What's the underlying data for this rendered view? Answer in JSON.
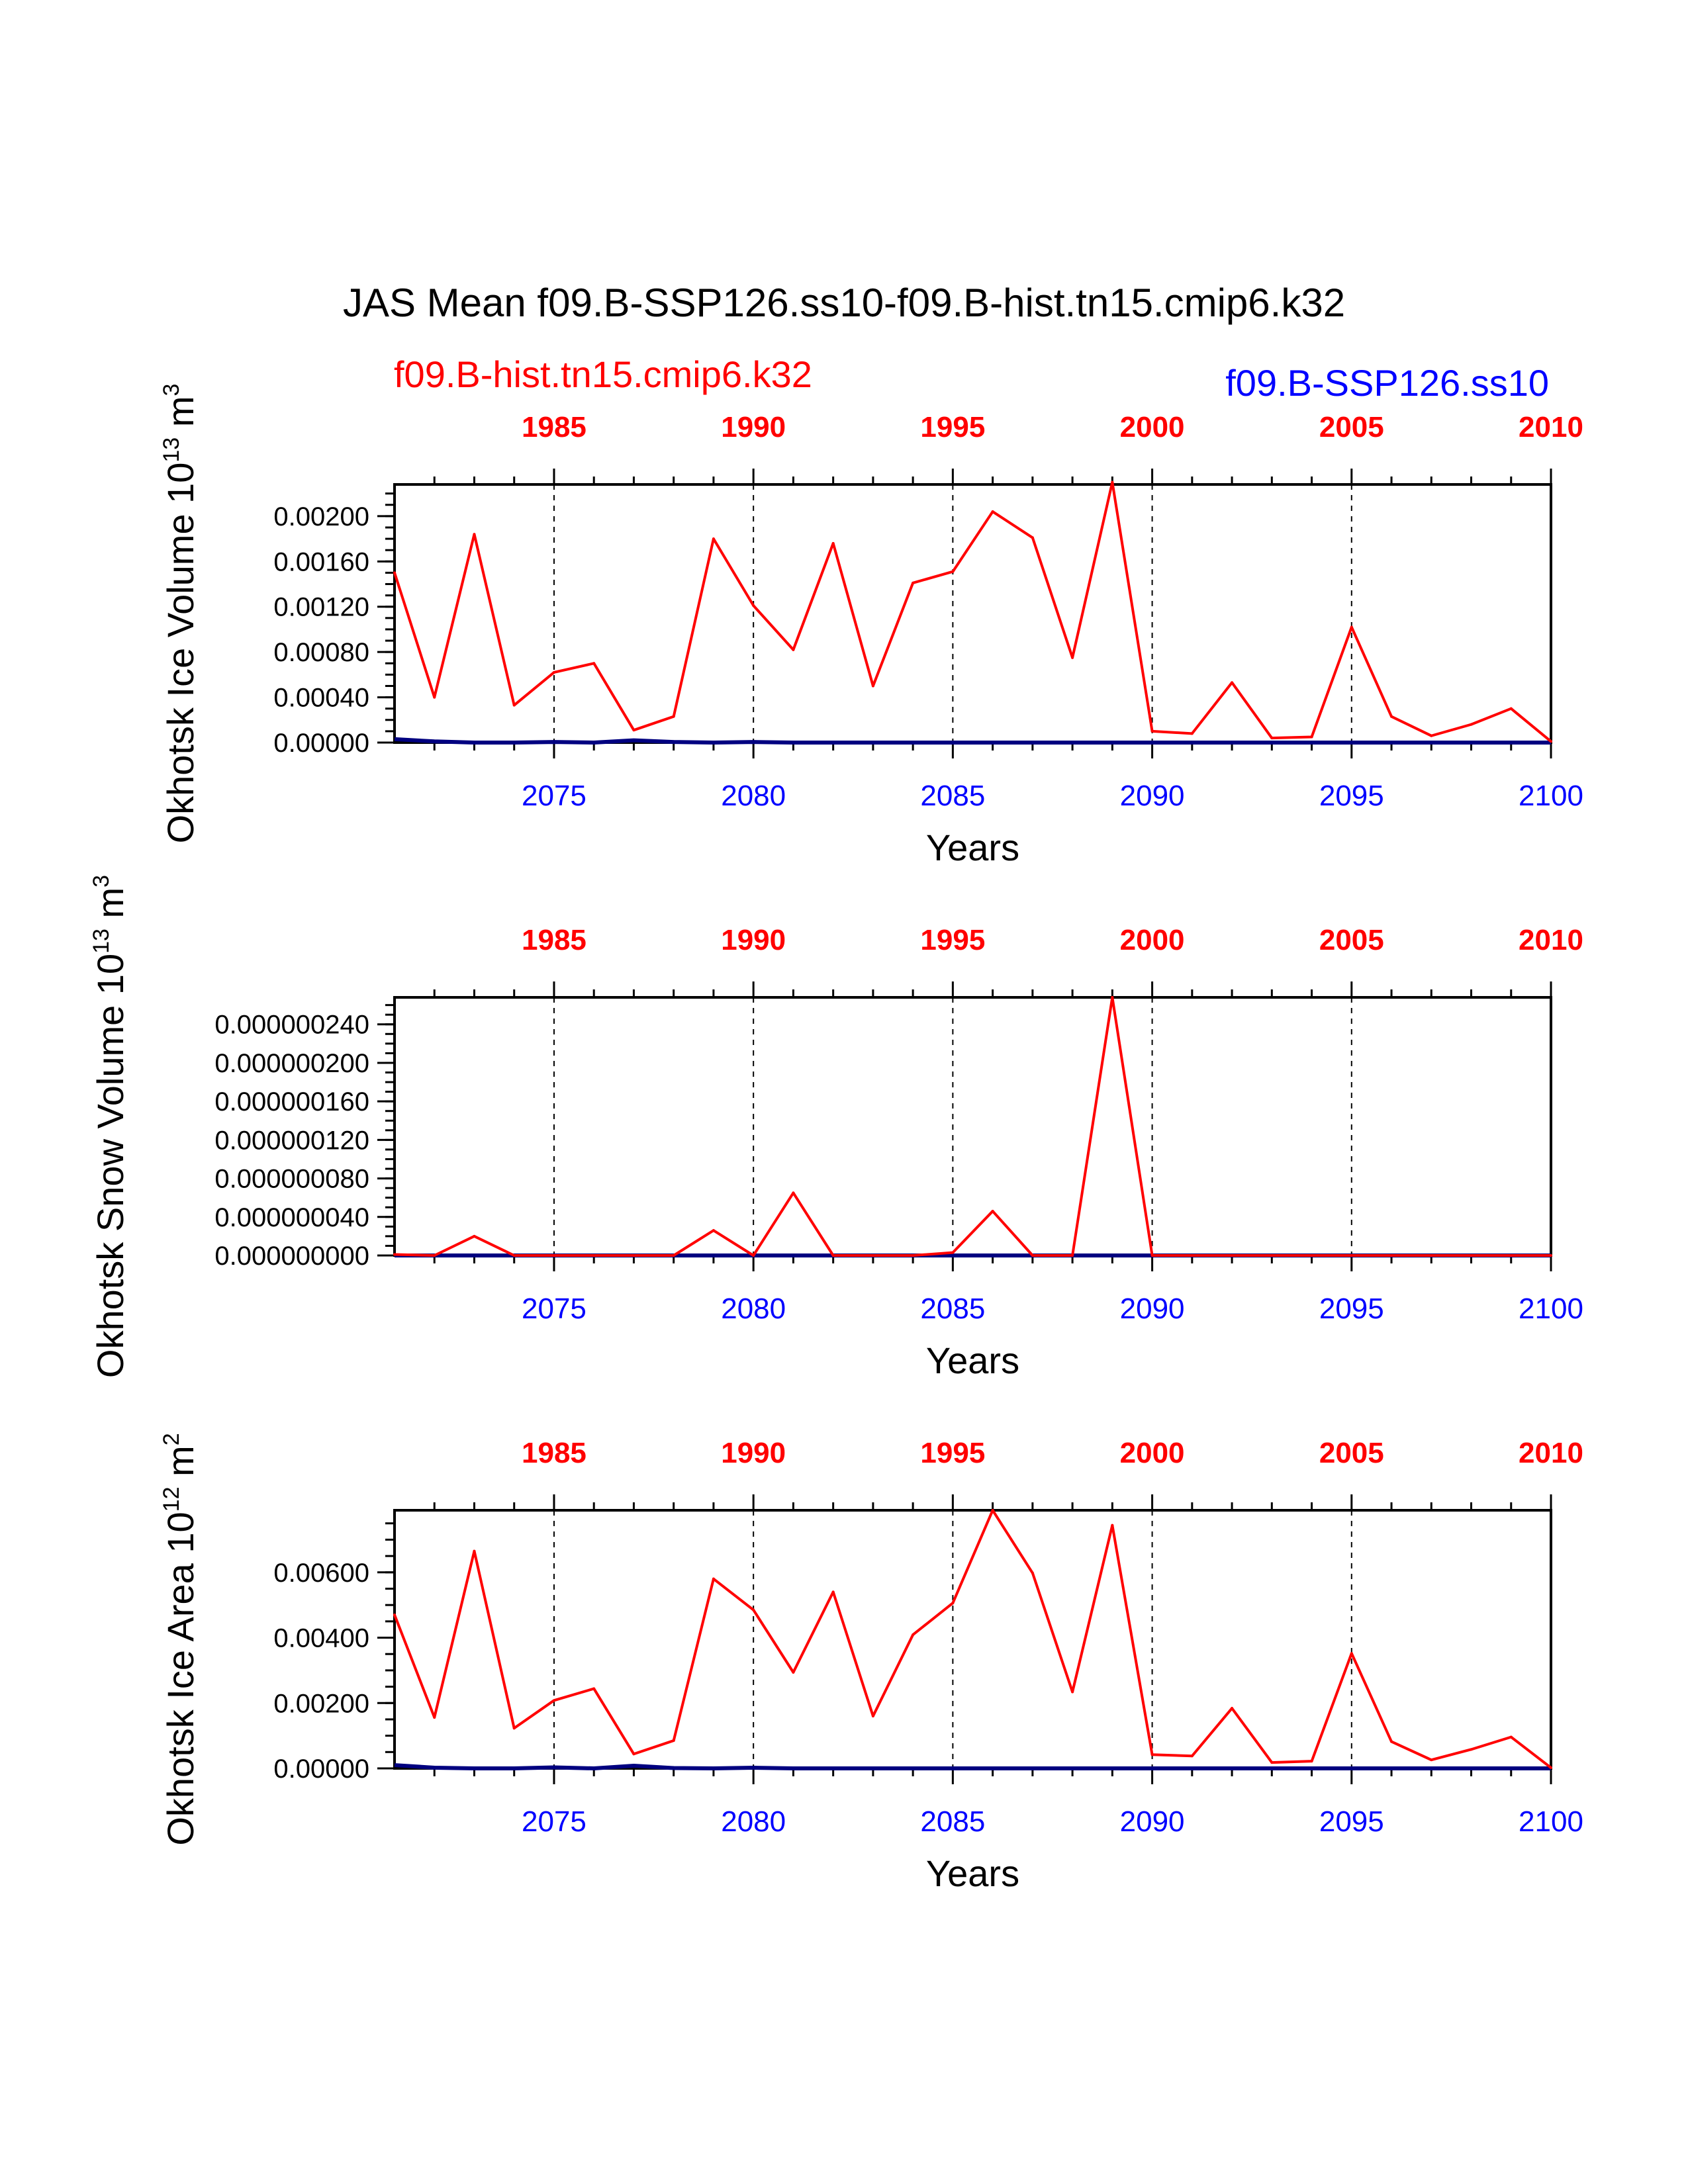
{
  "title": "JAS Mean f09.B-SSP126.ss10-f09.B-hist.tn15.cmip6.k32",
  "legend": {
    "hist": "f09.B-hist.tn15.cmip6.k32",
    "ssp": "f09.B-SSP126.ss10"
  },
  "colors": {
    "hist": "#ff0000",
    "ssp": "#0000ff",
    "ssp_line": "#000080",
    "axis": "#000000"
  },
  "chart_data": [
    {
      "type": "line",
      "name": "ice-volume",
      "ylabel_main": "Okhotsk Ice Volume 10",
      "ylabel_exp": "13",
      "ylabel_unit": " m",
      "ylabel_unit_exp": "3",
      "xlabel": "Years",
      "ylim": [
        0,
        0.00228
      ],
      "ytick_values": [
        0,
        0.0004,
        0.0008,
        0.0012,
        0.0016,
        0.002
      ],
      "ytick_labels": [
        "0.00000",
        "0.00040",
        "0.00080",
        "0.00120",
        "0.00160",
        "0.00200"
      ],
      "yminor_step": 0.0001,
      "x_top": {
        "range": [
          1981,
          2010
        ],
        "ticks": [
          1985,
          1990,
          1995,
          2000,
          2005,
          2010
        ]
      },
      "x_bottom": {
        "range": [
          2071,
          2100
        ],
        "ticks": [
          2075,
          2080,
          2085,
          2090,
          2095,
          2100
        ]
      },
      "series": [
        {
          "name": "f09.B-hist.tn15.cmip6.k32",
          "x": [
            1981,
            1982,
            1983,
            1984,
            1985,
            1986,
            1987,
            1988,
            1989,
            1990,
            1991,
            1992,
            1993,
            1994,
            1995,
            1996,
            1997,
            1998,
            1999,
            2000,
            2001,
            2002,
            2003,
            2004,
            2005,
            2006,
            2007,
            2008,
            2009,
            2010
          ],
          "values": [
            0.0015,
            0.0004,
            0.00184,
            0.00033,
            0.00062,
            0.0007,
            0.00011,
            0.00023,
            0.0018,
            0.00121,
            0.00082,
            0.00176,
            0.0005,
            0.00141,
            0.00151,
            0.00204,
            0.00181,
            0.00075,
            0.0023,
            0.0001,
            8e-05,
            0.00053,
            4e-05,
            5e-05,
            0.00102,
            0.00023,
            6e-05,
            0.00016,
            0.0003,
            1e-05
          ]
        },
        {
          "name": "f09.B-SSP126.ss10",
          "x": [
            2071,
            2072,
            2073,
            2074,
            2075,
            2076,
            2077,
            2078,
            2079,
            2080,
            2081,
            2082,
            2083,
            2084,
            2085,
            2086,
            2087,
            2088,
            2089,
            2090,
            2091,
            2092,
            2093,
            2094,
            2095,
            2096,
            2097,
            2098,
            2099,
            2100
          ],
          "values": [
            3e-05,
            1e-05,
            0,
            0,
            5e-06,
            0,
            2e-05,
            5e-06,
            0,
            5e-06,
            0,
            0,
            0,
            0,
            0,
            0,
            0,
            0,
            0,
            0,
            0,
            0,
            0,
            0,
            0,
            0,
            0,
            0,
            0,
            0
          ]
        }
      ]
    },
    {
      "type": "line",
      "name": "snow-volume",
      "ylabel_main": "Okhotsk Snow Volume 10",
      "ylabel_exp": "13",
      "ylabel_unit": " m",
      "ylabel_unit_exp": "3",
      "xlabel": "Years",
      "ylim": [
        0,
        2.68e-07
      ],
      "ytick_values": [
        0,
        4e-08,
        8e-08,
        1.2e-07,
        1.6e-07,
        2e-07,
        2.4e-07
      ],
      "ytick_labels": [
        "0.000000000",
        "0.000000040",
        "0.000000080",
        "0.000000120",
        "0.000000160",
        "0.000000200",
        "0.000000240"
      ],
      "yminor_step": 1e-08,
      "x_top": {
        "range": [
          1981,
          2010
        ],
        "ticks": [
          1985,
          1990,
          1995,
          2000,
          2005,
          2010
        ]
      },
      "x_bottom": {
        "range": [
          2071,
          2100
        ],
        "ticks": [
          2075,
          2080,
          2085,
          2090,
          2095,
          2100
        ]
      },
      "series": [
        {
          "name": "f09.B-hist.tn15.cmip6.k32",
          "x": [
            1981,
            1982,
            1983,
            1984,
            1985,
            1986,
            1987,
            1988,
            1989,
            1990,
            1991,
            1992,
            1993,
            1994,
            1995,
            1996,
            1997,
            1998,
            1999,
            2000,
            2001,
            2002,
            2003,
            2004,
            2005,
            2006,
            2007,
            2008,
            2009,
            2010
          ],
          "values": [
            1e-09,
            0,
            2e-08,
            0,
            0,
            0,
            0,
            0,
            2.6e-08,
            0,
            6.5e-08,
            0,
            0,
            0,
            3e-09,
            4.6e-08,
            0,
            0,
            2.68e-07,
            0,
            0,
            0,
            0,
            0,
            0,
            0,
            0,
            0,
            0,
            0
          ]
        },
        {
          "name": "f09.B-SSP126.ss10",
          "x": [
            2071,
            2072,
            2073,
            2074,
            2075,
            2076,
            2077,
            2078,
            2079,
            2080,
            2081,
            2082,
            2083,
            2084,
            2085,
            2086,
            2087,
            2088,
            2089,
            2090,
            2091,
            2092,
            2093,
            2094,
            2095,
            2096,
            2097,
            2098,
            2099,
            2100
          ],
          "values": [
            0,
            0,
            0,
            0,
            0,
            0,
            0,
            0,
            0,
            0,
            0,
            0,
            0,
            0,
            0,
            0,
            0,
            0,
            0,
            0,
            0,
            0,
            0,
            0,
            0,
            0,
            0,
            0,
            0,
            0
          ]
        }
      ]
    },
    {
      "type": "line",
      "name": "ice-area",
      "ylabel_main": "Okhotsk Ice Area 10",
      "ylabel_exp": "12",
      "ylabel_unit": " m",
      "ylabel_unit_exp": "2",
      "xlabel": "Years",
      "ylim": [
        0,
        0.0079
      ],
      "ytick_values": [
        0,
        0.002,
        0.004,
        0.006
      ],
      "ytick_labels": [
        "0.00000",
        "0.00200",
        "0.00400",
        "0.00600"
      ],
      "yminor_step": 0.0005,
      "x_top": {
        "range": [
          1981,
          2010
        ],
        "ticks": [
          1985,
          1990,
          1995,
          2000,
          2005,
          2010
        ]
      },
      "x_bottom": {
        "range": [
          2071,
          2100
        ],
        "ticks": [
          2075,
          2080,
          2085,
          2090,
          2095,
          2100
        ]
      },
      "series": [
        {
          "name": "f09.B-hist.tn15.cmip6.k32",
          "x": [
            1981,
            1982,
            1983,
            1984,
            1985,
            1986,
            1987,
            1988,
            1989,
            1990,
            1991,
            1992,
            1993,
            1994,
            1995,
            1996,
            1997,
            1998,
            1999,
            2000,
            2001,
            2002,
            2003,
            2004,
            2005,
            2006,
            2007,
            2008,
            2009,
            2010
          ],
          "values": [
            0.0047,
            0.00156,
            0.00665,
            0.00123,
            0.00208,
            0.00244,
            0.00044,
            0.00085,
            0.0058,
            0.00485,
            0.00294,
            0.0054,
            0.0016,
            0.00409,
            0.00506,
            0.0079,
            0.00598,
            0.00234,
            0.00744,
            0.00042,
            0.00038,
            0.00184,
            0.00018,
            0.00022,
            0.00352,
            0.00082,
            0.00026,
            0.00058,
            0.00096,
            2e-05
          ]
        },
        {
          "name": "f09.B-SSP126.ss10",
          "x": [
            2071,
            2072,
            2073,
            2074,
            2075,
            2076,
            2077,
            2078,
            2079,
            2080,
            2081,
            2082,
            2083,
            2084,
            2085,
            2086,
            2087,
            2088,
            2089,
            2090,
            2091,
            2092,
            2093,
            2094,
            2095,
            2096,
            2097,
            2098,
            2099,
            2100
          ],
          "values": [
            0.0001,
            2e-05,
            0,
            0,
            3e-05,
            0,
            8e-05,
            1e-05,
            0,
            2e-05,
            0,
            0,
            0,
            0,
            0,
            0,
            0,
            0,
            0,
            0,
            0,
            0,
            0,
            0,
            0,
            0,
            0,
            0,
            0,
            0
          ]
        }
      ]
    }
  ]
}
